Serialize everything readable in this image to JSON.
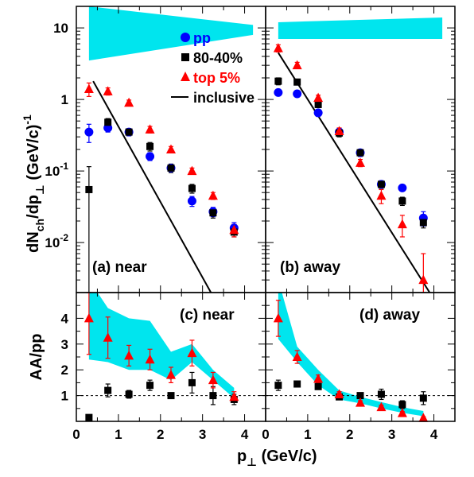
{
  "chart_data": [
    {
      "id": "near-spectrum",
      "type": "scatter",
      "panel_label": "(a) near",
      "ylabel": "dN_ch/dp_⊥ (GeV/c)^-1",
      "ylabel_parts": {
        "main": "dN",
        "sub1": "ch",
        "mid": "/dp",
        "sub2": "⊥",
        "unit": "(GeV/c)",
        "sup": "-1"
      },
      "xlim": [
        0,
        4.5
      ],
      "ylim": [
        0.002,
        20
      ],
      "yscale": "log",
      "y_tick_labels": [
        {
          "value": 10,
          "label": "10"
        },
        {
          "value": 1,
          "label": "1"
        },
        {
          "value": 0.1,
          "base": "10",
          "exp": "-1"
        },
        {
          "value": 0.01,
          "base": "10",
          "exp": "-2"
        }
      ],
      "legend": [
        {
          "name": "pp",
          "marker": "circle",
          "color": "#0000ff"
        },
        {
          "name": "80-40%",
          "marker": "square",
          "color": "#000000"
        },
        {
          "name": "top 5%",
          "marker": "triangle",
          "color": "#ff0000"
        },
        {
          "name": "inclusive",
          "marker": "line",
          "color": "#000000"
        }
      ],
      "legend_position": "top-right",
      "systematic_band": {
        "x": [
          0.3,
          4.2
        ],
        "upper": [
          20,
          11
        ],
        "lower": [
          3.5,
          8.0
        ],
        "color": "#00e5ee"
      },
      "inclusive_line": {
        "x": [
          0.4,
          3.2
        ],
        "y": [
          1.8,
          0.002
        ]
      },
      "series": [
        {
          "name": "pp",
          "marker": "circle",
          "color": "#0000ff",
          "x": [
            0.3,
            0.75,
            1.25,
            1.75,
            2.25,
            2.75,
            3.25,
            3.75
          ],
          "y": [
            0.35,
            0.4,
            0.35,
            0.16,
            0.11,
            0.038,
            0.027,
            0.016
          ],
          "err": [
            0.1,
            0.05,
            0.04,
            0.02,
            0.01,
            0.006,
            0.004,
            0.003
          ]
        },
        {
          "name": "80-40%",
          "marker": "square",
          "color": "#000000",
          "x": [
            0.3,
            0.75,
            1.25,
            1.75,
            2.25,
            2.75,
            3.25,
            3.75
          ],
          "y": [
            0.055,
            0.48,
            0.35,
            0.22,
            0.11,
            0.057,
            0.026,
            0.014
          ],
          "err_up": [
            0.06,
            0.06,
            0.04,
            0.03,
            0.015,
            0.008,
            0.004,
            0.002
          ],
          "err_down": [
            0.053,
            0.06,
            0.04,
            0.03,
            0.015,
            0.008,
            0.004,
            0.002
          ]
        },
        {
          "name": "top 5%",
          "marker": "triangle",
          "color": "#ff0000",
          "x": [
            0.3,
            0.75,
            1.25,
            1.75,
            2.25,
            2.75,
            3.25,
            3.75
          ],
          "y": [
            1.4,
            1.3,
            0.9,
            0.38,
            0.2,
            0.1,
            0.045,
            0.015
          ],
          "err": [
            0.3,
            0.15,
            0.08,
            0.04,
            0.02,
            0.01,
            0.005,
            0.003
          ]
        }
      ]
    },
    {
      "id": "away-spectrum",
      "type": "scatter",
      "panel_label": "(b) away",
      "xlim": [
        0,
        4.5
      ],
      "ylim": [
        0.002,
        20
      ],
      "yscale": "log",
      "systematic_band": {
        "x": [
          0.3,
          4.2
        ],
        "upper": [
          12,
          14
        ],
        "lower": [
          7.0,
          7.0
        ],
        "color": "#00e5ee"
      },
      "inclusive_line": {
        "x": [
          0.3,
          3.9
        ],
        "y": [
          4.5,
          0.002
        ]
      },
      "series": [
        {
          "name": "pp",
          "marker": "circle",
          "color": "#0000ff",
          "x": [
            0.3,
            0.75,
            1.25,
            1.75,
            2.25,
            2.75,
            3.25,
            3.75
          ],
          "y": [
            1.25,
            1.2,
            0.65,
            0.35,
            0.18,
            0.065,
            0.058,
            0.022
          ],
          "err": [
            0.1,
            0.1,
            0.05,
            0.03,
            0.015,
            0.006,
            0.005,
            0.005
          ]
        },
        {
          "name": "80-40%",
          "marker": "square",
          "color": "#000000",
          "x": [
            0.3,
            0.75,
            1.25,
            1.75,
            2.25,
            2.75,
            3.25,
            3.75
          ],
          "y": [
            1.8,
            1.75,
            0.85,
            0.34,
            0.18,
            0.065,
            0.038,
            0.019
          ],
          "err": [
            0.2,
            0.15,
            0.08,
            0.04,
            0.02,
            0.008,
            0.005,
            0.003
          ]
        },
        {
          "name": "top 5%",
          "marker": "triangle",
          "color": "#ff0000",
          "x": [
            0.3,
            0.75,
            1.25,
            1.75,
            2.25,
            2.75,
            3.25,
            3.75
          ],
          "y": [
            5.2,
            3.0,
            1.05,
            0.36,
            0.13,
            0.045,
            0.018,
            0.003
          ],
          "err": [
            0.6,
            0.3,
            0.1,
            0.04,
            0.015,
            0.01,
            0.006,
            0.004
          ]
        }
      ]
    },
    {
      "id": "near-ratio",
      "type": "scatter",
      "panel_label": "(c) near",
      "ylabel": "AA/pp",
      "xlim": [
        0,
        4.5
      ],
      "ylim": [
        0,
        5
      ],
      "y_ticks": [
        1,
        2,
        3,
        4
      ],
      "x_ticks": [
        0,
        1,
        2,
        3,
        4
      ],
      "xlabel": "p_⊥ (GeV/c)",
      "xlabel_parts": {
        "main": "p",
        "sub": "⊥",
        "unit": "(GeV/c)"
      },
      "reference_line": 1,
      "systematic_band": {
        "x": [
          0.3,
          0.75,
          1.25,
          1.75,
          2.25,
          2.75,
          3.25,
          3.75
        ],
        "upper": [
          5.5,
          4.4,
          4.0,
          3.9,
          2.7,
          3.0,
          2.0,
          1.3
        ],
        "lower": [
          2.4,
          2.3,
          2.0,
          2.0,
          1.6,
          2.3,
          1.6,
          0.9
        ],
        "color": "#00e5ee"
      },
      "series": [
        {
          "name": "80-40%",
          "marker": "square",
          "color": "#000000",
          "x": [
            0.3,
            0.75,
            1.25,
            1.75,
            2.25,
            2.75,
            3.25,
            3.75
          ],
          "y": [
            0.15,
            1.2,
            1.05,
            1.4,
            1.0,
            1.5,
            1.0,
            0.85
          ],
          "err": [
            0.1,
            0.25,
            0.15,
            0.2,
            0.1,
            0.4,
            0.35,
            0.2
          ]
        },
        {
          "name": "top 5%",
          "marker": "triangle",
          "color": "#ff0000",
          "x": [
            0.3,
            0.75,
            1.25,
            1.75,
            2.25,
            2.75,
            3.25,
            3.75
          ],
          "y": [
            4.0,
            3.25,
            2.55,
            2.4,
            1.8,
            2.65,
            1.6,
            0.95
          ],
          "err": [
            1.4,
            0.8,
            0.4,
            0.4,
            0.3,
            0.5,
            0.3,
            0.2
          ]
        }
      ]
    },
    {
      "id": "away-ratio",
      "type": "scatter",
      "panel_label": "(d) away",
      "xlim": [
        0,
        4.5
      ],
      "ylim": [
        0,
        5
      ],
      "x_ticks": [
        0,
        1,
        2,
        3,
        4
      ],
      "reference_line": 1,
      "systematic_band": {
        "x": [
          0.3,
          0.75,
          1.25,
          1.75,
          2.25,
          2.75,
          3.25,
          3.75
        ],
        "upper": [
          5.5,
          2.9,
          2.0,
          1.2,
          0.95,
          0.75,
          0.55,
          0.4
        ],
        "lower": [
          3.2,
          2.3,
          1.4,
          0.85,
          0.7,
          0.5,
          0.33,
          0.2
        ],
        "color": "#00e5ee"
      },
      "series": [
        {
          "name": "80-40%",
          "marker": "square",
          "color": "#000000",
          "x": [
            0.3,
            0.75,
            1.25,
            1.75,
            2.25,
            2.75,
            3.25,
            3.75
          ],
          "y": [
            1.4,
            1.45,
            1.35,
            0.95,
            1.0,
            1.05,
            0.65,
            0.9
          ],
          "err": [
            0.2,
            0.1,
            0.1,
            0.1,
            0.1,
            0.2,
            0.15,
            0.25
          ]
        },
        {
          "name": "top 5%",
          "marker": "triangle",
          "color": "#ff0000",
          "x": [
            0.3,
            0.75,
            1.25,
            1.75,
            2.25,
            2.75,
            3.25,
            3.75
          ],
          "y": [
            4.0,
            2.5,
            1.65,
            1.05,
            0.72,
            0.55,
            0.32,
            0.13
          ],
          "err": [
            0.7,
            0.25,
            0.15,
            0.1,
            0.08,
            0.08,
            0.06,
            0.05
          ]
        }
      ]
    }
  ],
  "x_tick_labels": [
    "0",
    "1",
    "2",
    "3",
    "4"
  ]
}
